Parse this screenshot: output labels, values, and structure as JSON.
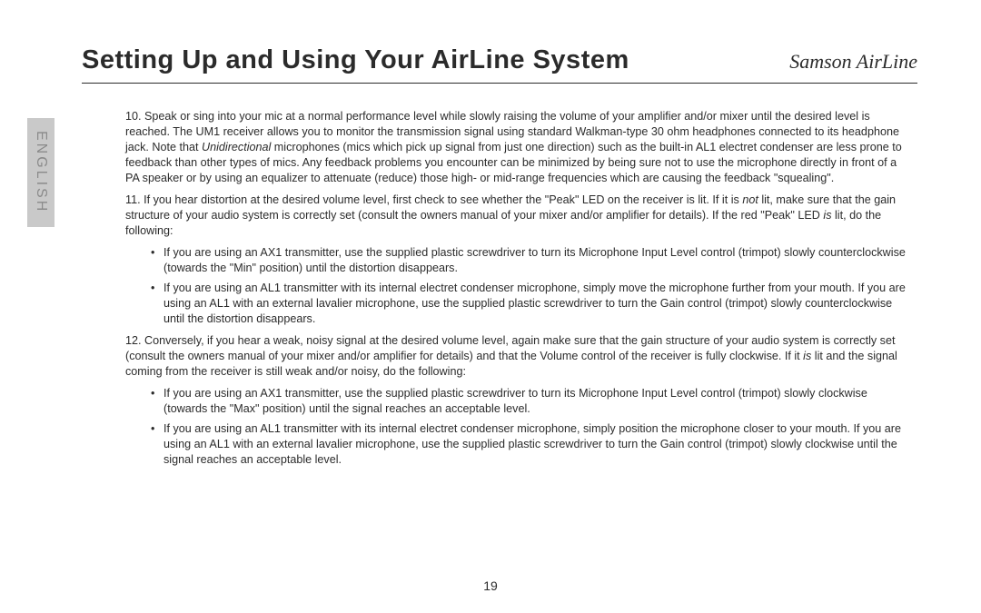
{
  "header": {
    "title": "Setting Up and Using Your AirLine System",
    "brand": "Samson AirLine"
  },
  "sidebar": {
    "language": "ENGLISH"
  },
  "content": {
    "p10_a": "10.  Speak or sing into your mic at a normal performance level while slowly raising the volume of your amplifier and/or mixer until the desired level is reached.  The UM1 receiver allows you to monitor the transmission signal using standard Walkman-type 30 ohm headphones connected to its headphone jack.  Note that ",
    "p10_uni": "Unidirectional",
    "p10_b": " microphones (mics which pick up signal from just one direction) such as the built-in AL1 electret condenser are less prone to feedback than other types of mics.  Any feedback problems  you encounter can be minimized by being sure not to use the microphone directly in front of a PA speaker or by using an equalizer   to attenuate (reduce) those high- or mid-range frequencies which are causing the feedback \"squealing\".",
    "p11_a": "11.  If you hear distortion at the desired volume level, first check to see whether the \"Peak\" LED on the receiver is lit.  If it is ",
    "p11_not": "not",
    "p11_b": " lit, make sure that the gain structure of your audio system is correctly set (consult the owners manual of your mixer and/or amplifier for details).  If the red \"Peak\" LED ",
    "p11_is": "is",
    "p11_c": " lit, do the following:",
    "b11_1": "If you are using an AX1 transmitter, use the supplied plastic screwdriver to turn its Microphone Input Level control (trimpot) slowly counterclockwise (towards the \"Min\" position) until the distortion disappears.",
    "b11_2": "If you are using an AL1 transmitter with its internal electret condenser microphone, simply move the microphone further from your mouth.  If you are using an AL1 with an external lavalier microphone, use the supplied plastic screwdriver to turn the Gain control (trimpot) slowly counterclockwise until the distortion disappears.",
    "p12_a": "12.  Conversely, if you hear a weak, noisy signal at the desired volume level, again make sure that the gain structure of your audio system is correctly set (consult the owners manual of your mixer and/or amplifier for details) and that the Volume control of the receiver is fully clockwise.  If it ",
    "p12_is": "is",
    "p12_b": " lit and the signal coming from the receiver is still weak and/or noisy, do the following:",
    "b12_1": "If you are using an AX1 transmitter, use the supplied plastic screwdriver to turn its Microphone Input Level control (trimpot) slowly clockwise (towards the \"Max\" position) until the signal reaches an acceptable level.",
    "b12_2": "If you are using an AL1 transmitter with its internal electret condenser microphone, simply position the microphone closer to your mouth.  If you are using an AL1 with an external lavalier microphone, use the supplied plastic screwdriver to turn the Gain control (trimpot) slowly clockwise until the signal reaches an acceptable level."
  },
  "page_number": "19"
}
